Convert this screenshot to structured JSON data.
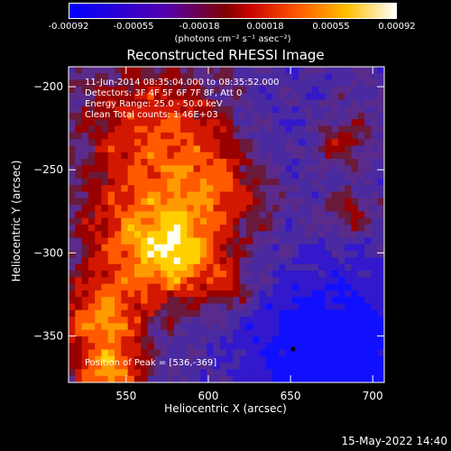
{
  "colorbar": {
    "ticks": [
      "-0.00092",
      "-0.00055",
      "-0.00018",
      "0.00018",
      "0.00055",
      "0.00092"
    ],
    "units": "(photons cm⁻² s⁻¹ asec⁻²)",
    "range": [
      -0.00092,
      0.00092
    ]
  },
  "chart_data": {
    "type": "heatmap",
    "title": "Reconstructed RHESSI Image",
    "xlabel": "Heliocentric X (arcsec)",
    "ylabel": "Heliocentric Y (arcsec)",
    "xlim": [
      515,
      707
    ],
    "ylim": [
      -378,
      -188
    ],
    "xticks": [
      550,
      600,
      650,
      700
    ],
    "yticks": [
      -200,
      -250,
      -300,
      -350
    ],
    "annotations": [
      "11-Jun-2014 08:35:04.000 to 08:35:52.000",
      "Detectors: 3F 4F 5F 6F 7F 8F, Att 0",
      "Energy Range: 25.0 - 50.0 keV",
      "Clean  Total counts: 1.46E+03",
      "Position of Peak = [536,-369]"
    ],
    "peak": [
      536,
      -369
    ]
  },
  "timestamp": "15-May-2022 14:40"
}
